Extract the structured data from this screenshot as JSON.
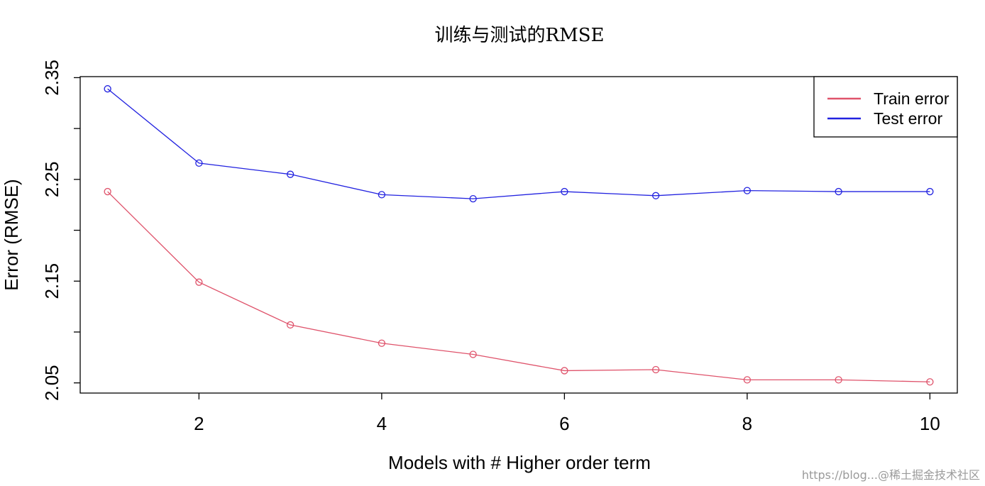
{
  "chart_data": {
    "type": "line",
    "title": "训练与测试的RMSE",
    "xlabel": "Models with # Higher order term",
    "ylabel": "Error (RMSE)",
    "x": [
      1,
      2,
      3,
      4,
      5,
      6,
      7,
      8,
      9,
      10
    ],
    "xlim": [
      0.7,
      10.3
    ],
    "ylim": [
      2.04,
      2.351
    ],
    "xticks": [
      2,
      4,
      6,
      8,
      10
    ],
    "xtick_labels": [
      "2",
      "4",
      "6",
      "8",
      "10"
    ],
    "yticks": [
      2.05,
      2.1,
      2.15,
      2.2,
      2.25,
      2.3,
      2.35
    ],
    "ytick_labels": [
      "2.05",
      "",
      "2.15",
      "",
      "2.25",
      "",
      "2.35"
    ],
    "grid": false,
    "legend_position": "top-right",
    "series": [
      {
        "name": "Train error",
        "color": "#DF536B",
        "values": [
          2.238,
          2.149,
          2.107,
          2.089,
          2.078,
          2.062,
          2.063,
          2.053,
          2.053,
          2.051
        ]
      },
      {
        "name": "Test error",
        "color": "#2222E0",
        "values": [
          2.339,
          2.266,
          2.255,
          2.235,
          2.231,
          2.238,
          2.234,
          2.239,
          2.238,
          2.238
        ]
      }
    ]
  },
  "watermark": "https://blog...@稀土掘金技术社区"
}
